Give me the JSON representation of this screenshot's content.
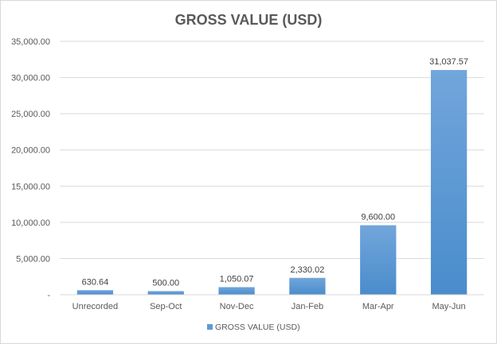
{
  "chart_data": {
    "type": "bar",
    "title": "GROSS VALUE (USD)",
    "categories": [
      "Unrecorded",
      "Sep-Oct",
      "Nov-Dec",
      "Jan-Feb",
      "Mar-Apr",
      "May-Jun"
    ],
    "series": [
      {
        "name": "GROSS VALUE (USD)",
        "values": [
          630.64,
          500.0,
          1050.07,
          2330.02,
          9600.0,
          31037.57
        ],
        "labels": [
          "630.64",
          "500.00",
          "1,050.07",
          "2,330.02",
          "9,600.00",
          "31,037.57"
        ]
      }
    ],
    "ylim": [
      0,
      35000
    ],
    "yticks": [
      0,
      5000,
      10000,
      15000,
      20000,
      25000,
      30000,
      35000
    ],
    "ytick_labels": [
      "-",
      "5,000.00",
      "10,000.00",
      "15,000.00",
      "20,000.00",
      "25,000.00",
      "30,000.00",
      "35,000.00"
    ],
    "grid": true,
    "legend": "bottom",
    "bar_color": "#5b9bd5",
    "bar_color_light": "#71a6db",
    "bar_color_dark": "#4a8ccc",
    "xlabel": "",
    "ylabel": ""
  }
}
